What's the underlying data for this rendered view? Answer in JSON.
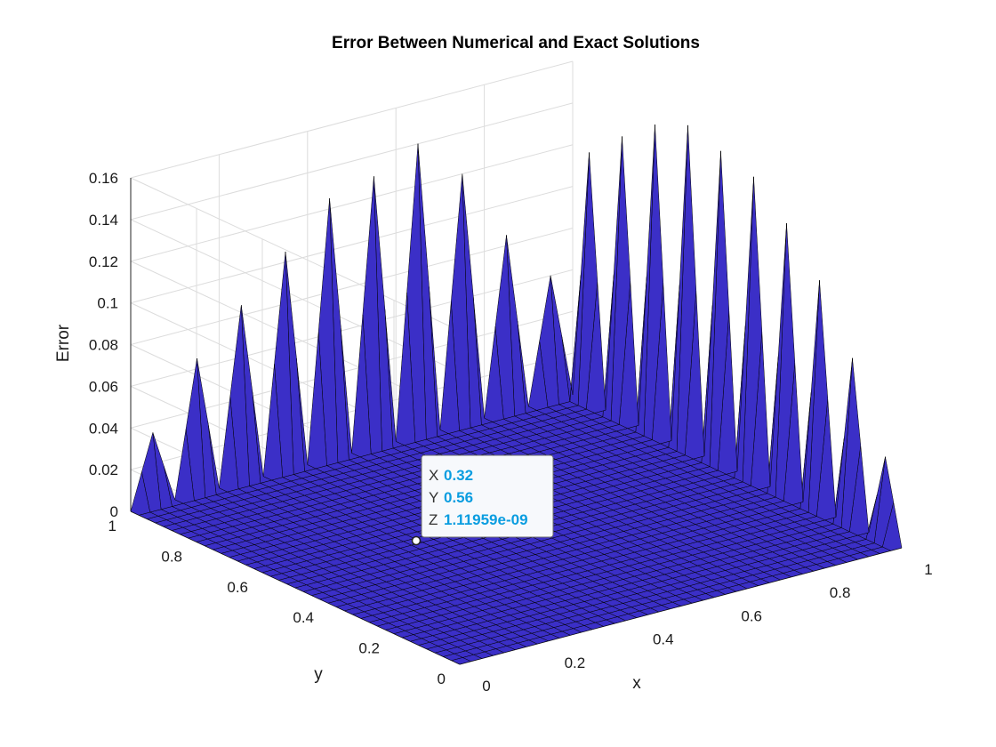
{
  "chart_data": {
    "type": "surface",
    "title": "Error Between Numerical and Exact Solutions",
    "xlabel": "x",
    "ylabel": "y",
    "zlabel": "Error",
    "xlim": [
      0,
      1
    ],
    "ylim": [
      0,
      1
    ],
    "zlim": [
      0,
      0.16
    ],
    "x_ticks": [
      "0",
      "0.2",
      "0.4",
      "0.6",
      "0.8",
      "1"
    ],
    "y_ticks": [
      "0",
      "0.2",
      "0.4",
      "0.6",
      "0.8",
      "1"
    ],
    "z_ticks": [
      "0",
      "0.02",
      "0.04",
      "0.06",
      "0.08",
      "0.1",
      "0.12",
      "0.14",
      "0.16"
    ],
    "grid": true,
    "grid_resolution": 40,
    "surface_color": "#3b2fc7",
    "edge_color": "#000000",
    "edge_at_x1": {
      "description_of_axis": "error along edge x = 1 as y varies",
      "y": [
        0.025,
        0.075,
        0.125,
        0.175,
        0.225,
        0.275,
        0.325,
        0.375,
        0.425,
        0.475
      ],
      "z": [
        0.04,
        0.08,
        0.11,
        0.13,
        0.145,
        0.15,
        0.155,
        0.148,
        0.135,
        0.12
      ]
    },
    "edge_at_y1": {
      "description_of_axis": "error along edge y = 1 as x varies",
      "x": [
        0.025,
        0.075,
        0.125,
        0.175,
        0.225,
        0.275,
        0.325,
        0.375,
        0.425,
        0.475
      ],
      "z": [
        0.035,
        0.065,
        0.085,
        0.105,
        0.125,
        0.13,
        0.14,
        0.12,
        0.085,
        0.06
      ]
    },
    "datatip": {
      "X": "0.32",
      "Y": "0.56",
      "Z": "1.11959e-09",
      "value_color": "#0a9de0"
    }
  }
}
